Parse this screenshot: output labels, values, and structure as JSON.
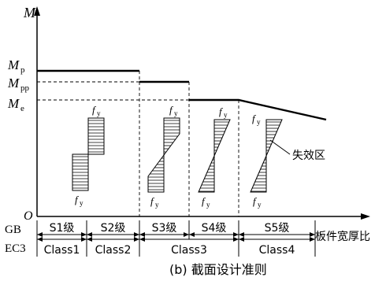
{
  "axes": {
    "y_label": "M",
    "y_label_sub": "",
    "x_label": "板件宽厚比",
    "origin": "O"
  },
  "levels": {
    "mp": {
      "main": "M",
      "sub": "p"
    },
    "mpp": {
      "main": "M",
      "sub": "pp"
    },
    "me": {
      "main": "M",
      "sub": "e"
    }
  },
  "stress_labels": {
    "fy_main": "f",
    "fy_sub": "y"
  },
  "annotation": "失效区",
  "rows": {
    "gb_label": "GB",
    "ec3_label": "EC3",
    "gb": [
      "S1级",
      "S2级",
      "S3级",
      "S4级",
      "S5级"
    ],
    "ec3": [
      "Class1",
      "Class2",
      "Class3",
      "Class4"
    ]
  },
  "caption": "(b) 截面设计准则"
}
